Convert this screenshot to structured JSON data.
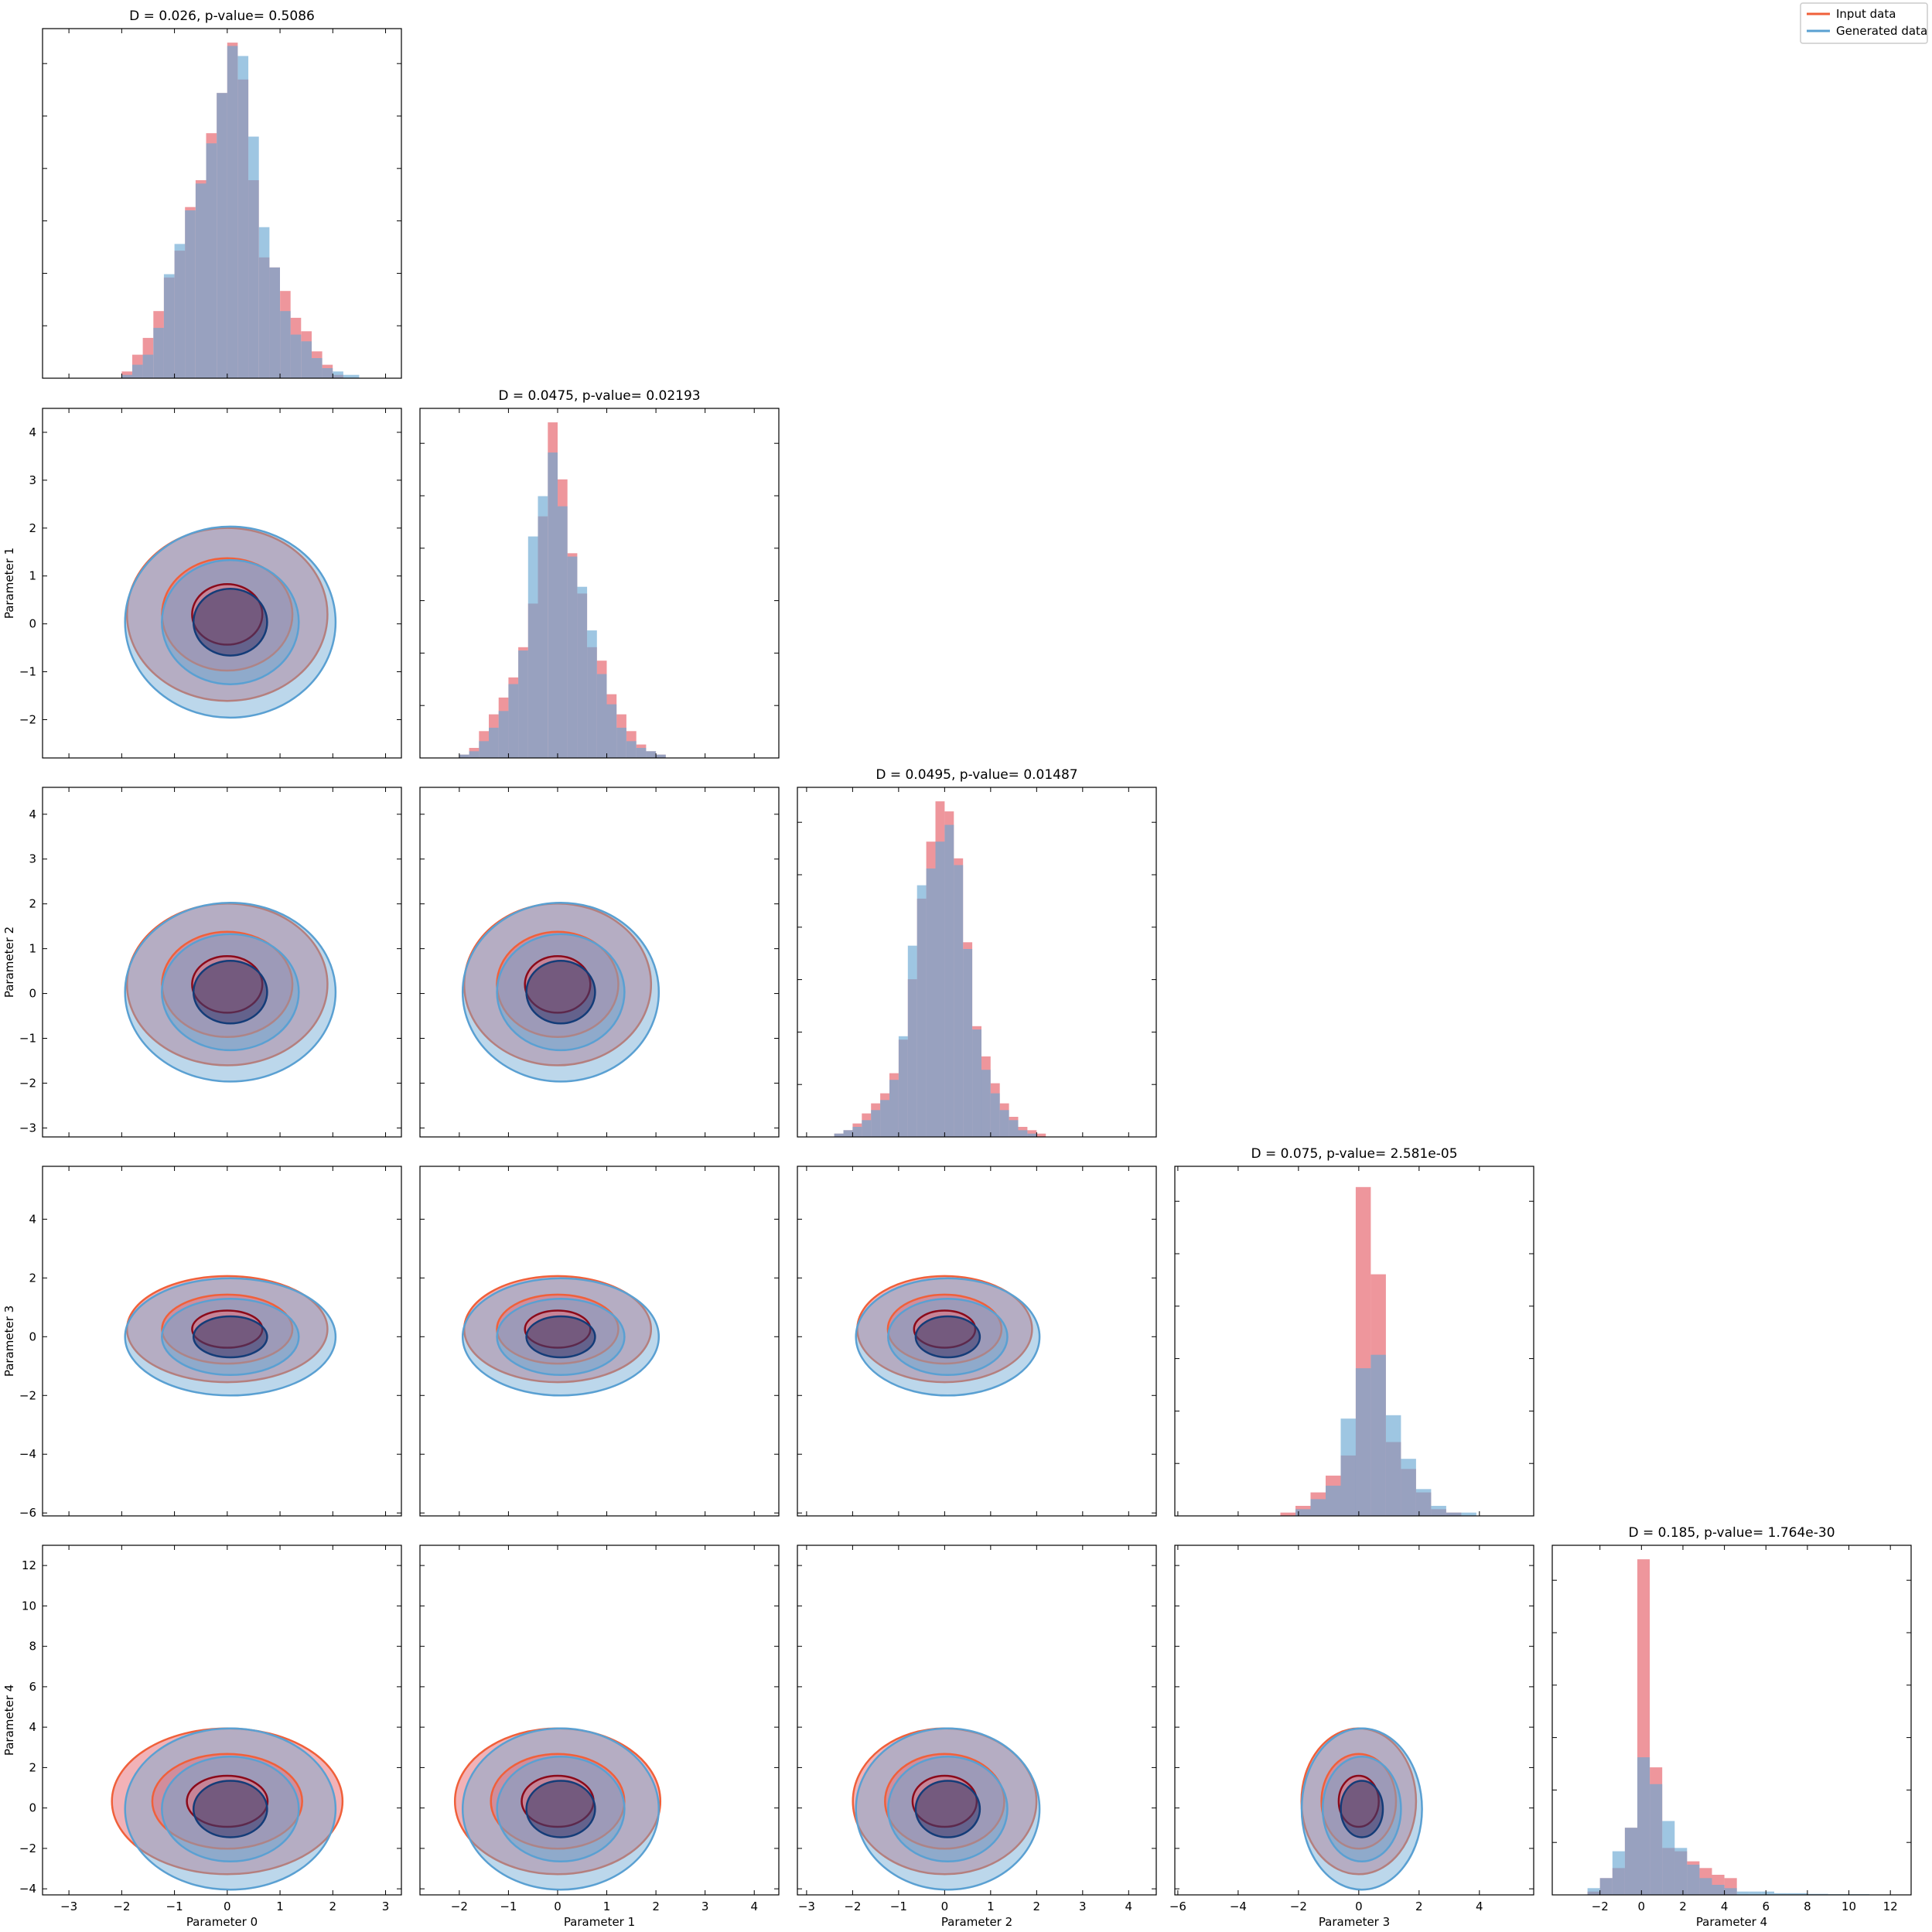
{
  "legend": {
    "entries": [
      {
        "label": "Input data",
        "color": "#f0603a"
      },
      {
        "label": "Generated data",
        "color": "#5aa0d2"
      }
    ],
    "placement": "top-right"
  },
  "colors": {
    "input_fill": "#e8737b",
    "generated_fill": "#6aa7d3",
    "input_contour": "#f0603a",
    "generated_contour": "#5aa0d2",
    "input_inner": "#8b0a1a",
    "generated_inner": "#143c78"
  },
  "chart_data": {
    "type": "corner",
    "parameters": [
      "Parameter 0",
      "Parameter 1",
      "Parameter 2",
      "Parameter 3",
      "Parameter 4"
    ],
    "ranges": [
      [
        -3.5,
        3.3
      ],
      [
        -2.8,
        4.5
      ],
      [
        -3.2,
        4.6
      ],
      [
        -6.1,
        5.8
      ],
      [
        -4.3,
        13.0
      ]
    ],
    "ticks": [
      [
        -3,
        -2,
        -1,
        0,
        1,
        2,
        3
      ],
      [
        -2,
        -1,
        0,
        1,
        2,
        3,
        4
      ],
      [
        -3,
        -2,
        -1,
        0,
        1,
        2,
        3,
        4
      ],
      [
        -6,
        -4,
        -2,
        0,
        2,
        4
      ],
      [
        -2,
        0,
        2,
        4,
        6,
        8,
        10,
        12
      ]
    ],
    "y_ticks": [
      [],
      [
        -2,
        -1,
        0,
        1,
        2,
        3,
        4
      ],
      [
        -3,
        -2,
        -1,
        0,
        1,
        2,
        3,
        4
      ],
      [
        -6,
        -4,
        -2,
        0,
        2,
        4
      ],
      [
        -4,
        -2,
        0,
        2,
        4,
        6,
        8,
        10,
        12
      ]
    ],
    "ks_titles": [
      "D = 0.026, p-value= 0.5086",
      "D = 0.0475, p-value= 0.02193",
      "D = 0.0495, p-value= 0.01487",
      "D = 0.075, p-value= 2.581e-05",
      "D = 0.185, p-value= 1.764e-30"
    ],
    "histograms": [
      {
        "edges": [
          -2.0,
          -1.8,
          -1.6,
          -1.4,
          -1.2,
          -1.0,
          -0.8,
          -0.6,
          -0.4,
          -0.2,
          0.0,
          0.2,
          0.4,
          0.6,
          0.8,
          1.0,
          1.2,
          1.4,
          1.6,
          1.8,
          2.0,
          2.2,
          2.5
        ],
        "input": [
          0.02,
          0.07,
          0.12,
          0.2,
          0.3,
          0.38,
          0.51,
          0.59,
          0.73,
          0.85,
          1.0,
          0.89,
          0.59,
          0.36,
          0.33,
          0.26,
          0.18,
          0.14,
          0.08,
          0.04,
          0.01,
          0.0
        ],
        "generated": [
          0.01,
          0.04,
          0.07,
          0.15,
          0.31,
          0.4,
          0.5,
          0.58,
          0.7,
          0.85,
          0.99,
          0.96,
          0.72,
          0.45,
          0.33,
          0.2,
          0.13,
          0.11,
          0.06,
          0.03,
          0.02,
          0.01
        ]
      },
      {
        "edges": [
          -2.0,
          -1.8,
          -1.6,
          -1.4,
          -1.2,
          -1.0,
          -0.8,
          -0.6,
          -0.4,
          -0.2,
          0.0,
          0.2,
          0.4,
          0.6,
          0.8,
          1.0,
          1.2,
          1.4,
          1.6,
          1.8,
          2.0,
          2.2,
          2.4
        ],
        "input": [
          0.01,
          0.03,
          0.08,
          0.13,
          0.18,
          0.24,
          0.33,
          0.46,
          0.72,
          1.0,
          0.83,
          0.61,
          0.49,
          0.33,
          0.29,
          0.19,
          0.13,
          0.08,
          0.04,
          0.02,
          0.01,
          0.0
        ],
        "generated": [
          0.01,
          0.02,
          0.05,
          0.09,
          0.14,
          0.22,
          0.32,
          0.66,
          0.78,
          0.91,
          0.75,
          0.6,
          0.51,
          0.38,
          0.25,
          0.16,
          0.09,
          0.05,
          0.03,
          0.02,
          0.01,
          0.0
        ]
      },
      {
        "edges": [
          -2.6,
          -2.4,
          -2.2,
          -2.0,
          -1.8,
          -1.6,
          -1.4,
          -1.2,
          -1.0,
          -0.8,
          -0.6,
          -0.4,
          -0.2,
          0.0,
          0.2,
          0.4,
          0.6,
          0.8,
          1.0,
          1.2,
          1.4,
          1.6,
          1.8,
          2.0,
          2.2
        ],
        "input": [
          0.0,
          0.01,
          0.02,
          0.04,
          0.07,
          0.1,
          0.13,
          0.19,
          0.29,
          0.47,
          0.71,
          0.88,
          1.0,
          0.97,
          0.83,
          0.58,
          0.33,
          0.24,
          0.16,
          0.1,
          0.06,
          0.03,
          0.02,
          0.01
        ],
        "generated": [
          0.0,
          0.01,
          0.02,
          0.03,
          0.05,
          0.08,
          0.11,
          0.17,
          0.3,
          0.57,
          0.75,
          0.8,
          0.88,
          0.93,
          0.81,
          0.56,
          0.32,
          0.2,
          0.13,
          0.08,
          0.05,
          0.02,
          0.01,
          0.0
        ]
      },
      {
        "edges": [
          -2.6,
          -2.1,
          -1.6,
          -1.1,
          -0.6,
          -0.1,
          0.4,
          0.9,
          1.4,
          1.9,
          2.4,
          2.9,
          3.4,
          3.9,
          4.4,
          5.0
        ],
        "input": [
          0.01,
          0.03,
          0.07,
          0.12,
          0.18,
          0.98,
          0.72,
          0.22,
          0.14,
          0.07,
          0.02,
          0.01,
          0.0,
          0.0,
          0.0
        ],
        "generated": [
          0.0,
          0.02,
          0.05,
          0.09,
          0.29,
          0.44,
          0.48,
          0.3,
          0.17,
          0.08,
          0.03,
          0.01,
          0.01,
          0.0,
          0.0
        ]
      },
      {
        "edges": [
          -2.6,
          -2.0,
          -1.4,
          -0.8,
          -0.2,
          0.4,
          1.0,
          1.6,
          2.2,
          2.8,
          3.4,
          4.0,
          4.6,
          5.2,
          5.8,
          6.4,
          7.0,
          8.0,
          9.0,
          10.0,
          11.0,
          12.0
        ],
        "input": [
          0.01,
          0.05,
          0.08,
          0.2,
          1.0,
          0.38,
          0.14,
          0.13,
          0.1,
          0.08,
          0.06,
          0.05,
          0.0,
          0.0,
          0.0,
          0.0,
          0.0,
          0.0,
          0.0,
          0.0,
          0.0
        ],
        "generated": [
          0.02,
          0.05,
          0.13,
          0.2,
          0.41,
          0.33,
          0.22,
          0.14,
          0.09,
          0.05,
          0.03,
          0.02,
          0.01,
          0.01,
          0.01,
          0.005,
          0.005,
          0.003,
          0.002,
          0.002,
          0.001
        ]
      }
    ],
    "contours": {
      "levels": [
        "outer",
        "middle",
        "inner"
      ],
      "input_scale": [
        [
          1.0,
          1.0,
          1.0,
          1.0,
          1.15
        ],
        [
          1.0,
          1.0,
          1.0,
          1.0,
          1.1
        ],
        [
          1.0,
          1.0,
          1.0,
          1.0,
          1.05
        ],
        [
          1.0,
          1.0,
          1.0,
          1.0,
          1.0
        ],
        [
          1.15,
          1.1,
          1.05,
          1.0,
          1.0
        ]
      ],
      "level_sigma": [
        2.0,
        1.3,
        0.7
      ]
    }
  }
}
